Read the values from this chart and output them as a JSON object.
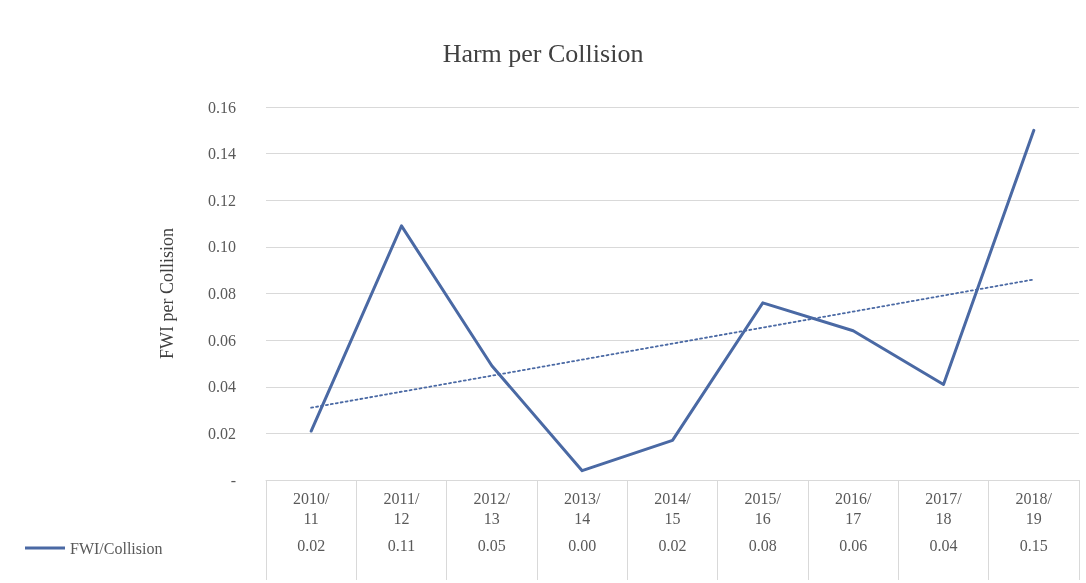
{
  "chart_data": {
    "type": "line",
    "title": "Harm per Collision",
    "ylabel": "FWI per Collision",
    "categories": [
      "2010/11",
      "2011/12",
      "2012/13",
      "2013/14",
      "2014/15",
      "2015/16",
      "2016/17",
      "2017/18",
      "2018/19"
    ],
    "series": [
      {
        "name": "FWI/Collision",
        "color": "#4a69a4",
        "values": [
          0.021,
          0.109,
          0.049,
          0.004,
          0.017,
          0.076,
          0.064,
          0.041,
          0.15
        ],
        "value_labels": [
          "0.02",
          "0.11",
          "0.05",
          "0.00",
          "0.02",
          "0.08",
          "0.06",
          "0.04",
          "0.15"
        ]
      },
      {
        "type": "line",
        "color": "#4a69a4",
        "x": [
          "2010/11",
          "2018/19"
        ],
        "values": [
          0.031,
          0.086
        ],
        "line_style": "dotted"
      }
    ],
    "ylim": [
      0,
      0.16
    ],
    "yticks": [
      {
        "value": 0,
        "label": "-"
      },
      0.02,
      0.04,
      0.06,
      0.08,
      {
        "value": 0.1,
        "label": "0.10"
      },
      0.12,
      0.14,
      0.16
    ],
    "grid": "y",
    "legend": "bottom left",
    "marker": "none",
    "line_style": "solid"
  }
}
